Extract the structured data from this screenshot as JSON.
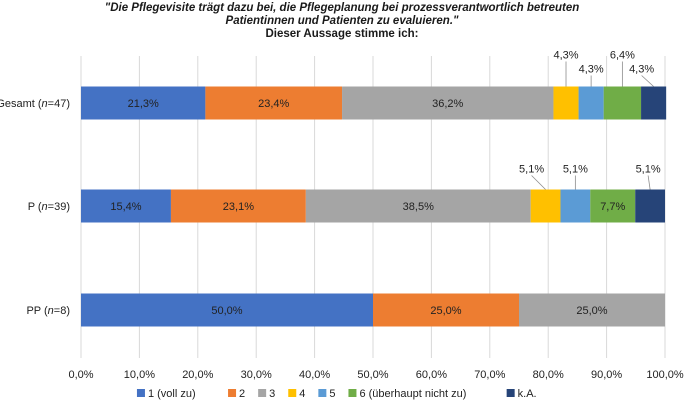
{
  "chart_data": {
    "type": "bar",
    "orientation": "horizontal",
    "stacked": true,
    "title_lines": [
      "\"Die Pflegevisite trägt dazu bei, die Pflegeplanung bei prozessverantwortlich betreuten",
      "Patientinnen und Patienten zu evaluieren.\"",
      "Dieser Aussage stimme ich:"
    ],
    "categories": [
      {
        "prefix": "Gesamt (",
        "n": "n",
        "suffix": "=47)"
      },
      {
        "prefix": "P (",
        "n": "n",
        "suffix": "=39)"
      },
      {
        "prefix": "PP (",
        "n": "n",
        "suffix": "=8)"
      }
    ],
    "series": [
      {
        "name": "1 (voll zu)",
        "color": "#4472C4",
        "values": [
          21.3,
          15.4,
          50.0
        ],
        "labels": [
          "21,3%",
          "15,4%",
          "50,0%"
        ]
      },
      {
        "name": "2",
        "color": "#ED7D31",
        "values": [
          23.4,
          23.1,
          25.0
        ],
        "labels": [
          "23,4%",
          "23,1%",
          "25,0%"
        ]
      },
      {
        "name": "3",
        "color": "#A5A5A5",
        "values": [
          36.2,
          38.5,
          25.0
        ],
        "labels": [
          "36,2%",
          "38,5%",
          "25,0%"
        ]
      },
      {
        "name": "4",
        "color": "#FFC000",
        "values": [
          4.3,
          5.1,
          0
        ],
        "labels": [
          "4,3%",
          "5,1%",
          ""
        ]
      },
      {
        "name": "5",
        "color": "#5B9BD5",
        "values": [
          4.3,
          5.1,
          0
        ],
        "labels": [
          "4,3%",
          "5,1%",
          ""
        ]
      },
      {
        "name": "6 (überhaupt nicht zu)",
        "color": "#70AD47",
        "values": [
          6.4,
          7.7,
          0
        ],
        "labels": [
          "6,4%",
          "7,7%",
          ""
        ]
      },
      {
        "name": "k.A.",
        "color": "#264478",
        "values": [
          4.3,
          5.1,
          0
        ],
        "labels": [
          "4,3%",
          "5,1%",
          ""
        ]
      }
    ],
    "xlim": [
      0,
      100
    ],
    "xticks": [
      "0,0%",
      "10,0%",
      "20,0%",
      "30,0%",
      "40,0%",
      "50,0%",
      "60,0%",
      "70,0%",
      "80,0%",
      "90,0%",
      "100,0%"
    ],
    "grid": true,
    "legend_position": "bottom"
  }
}
